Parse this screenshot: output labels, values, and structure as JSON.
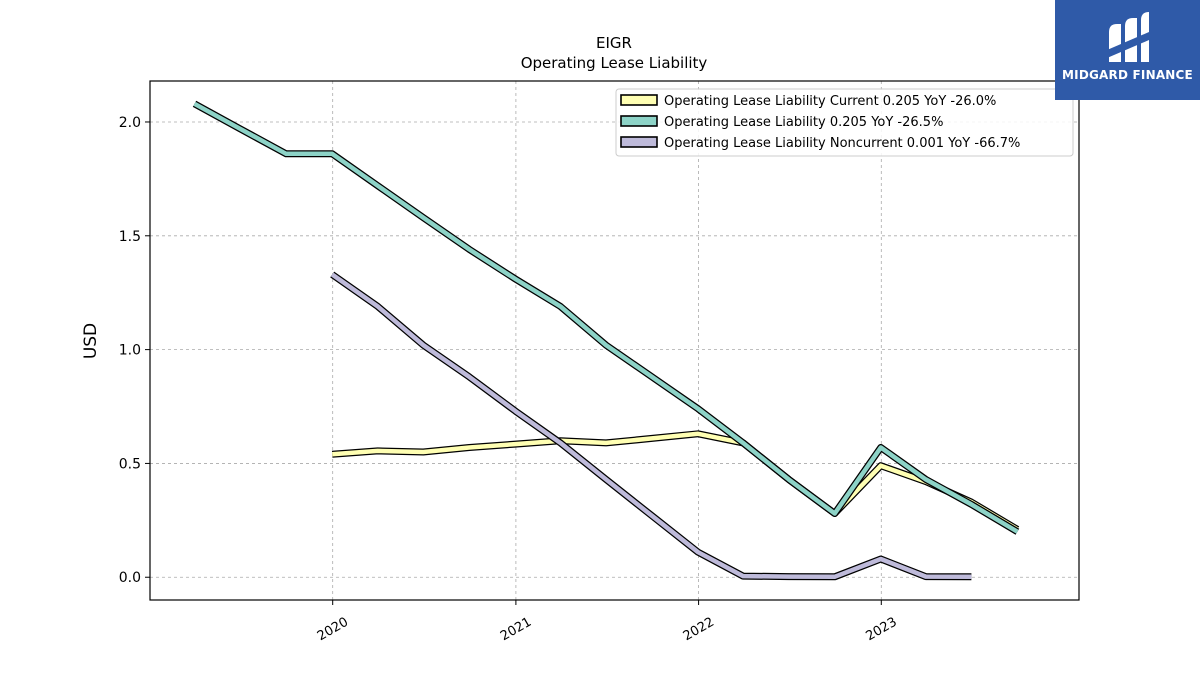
{
  "chart_data": {
    "type": "line",
    "title": "EIGR",
    "subtitle": "Operating Lease Liability",
    "xlabel": "",
    "ylabel": "USD",
    "xlim": [
      "2019-01-01",
      "2024-01-31"
    ],
    "ylim": [
      -0.1,
      2.18
    ],
    "yticks": [
      0.0,
      0.5,
      1.0,
      1.5,
      2.0
    ],
    "ytick_labels": [
      "0.0",
      "0.5",
      "1.0",
      "1.5",
      "2.0"
    ],
    "xticks": [
      "2020-01-01",
      "2021-01-01",
      "2022-01-01",
      "2023-01-01"
    ],
    "xtick_labels": [
      "2020",
      "2021",
      "2022",
      "2023"
    ],
    "grid": true,
    "legend_position": "top-right",
    "series": [
      {
        "name": "Operating Lease Liability Current",
        "legend": "Operating Lease Liability Current  0.205 YoY -26.0%",
        "color": "#ffffb3",
        "points": [
          [
            "2019-12-31",
            0.54
          ],
          [
            "2020-03-31",
            0.555
          ],
          [
            "2020-06-30",
            0.55
          ],
          [
            "2020-09-30",
            0.57
          ],
          [
            "2020-12-31",
            0.585
          ],
          [
            "2021-03-31",
            0.6
          ],
          [
            "2021-06-30",
            0.59
          ],
          [
            "2021-09-30",
            0.61
          ],
          [
            "2021-12-31",
            0.63
          ],
          [
            "2022-03-31",
            0.59
          ],
          [
            "2022-06-30",
            0.43
          ],
          [
            "2022-09-30",
            0.28
          ],
          [
            "2022-12-31",
            0.49
          ],
          [
            "2023-03-31",
            0.42
          ],
          [
            "2023-06-30",
            0.33
          ],
          [
            "2023-09-30",
            0.21
          ]
        ]
      },
      {
        "name": "Operating Lease Liability",
        "legend": "Operating Lease Liability  0.205 YoY -26.5%",
        "color": "#8dd3c7",
        "points": [
          [
            "2019-03-31",
            2.08
          ],
          [
            "2019-06-30",
            1.97
          ],
          [
            "2019-09-30",
            1.86
          ],
          [
            "2019-12-31",
            1.86
          ],
          [
            "2020-03-31",
            1.72
          ],
          [
            "2020-06-30",
            1.58
          ],
          [
            "2020-09-30",
            1.44
          ],
          [
            "2020-12-31",
            1.31
          ],
          [
            "2021-03-31",
            1.19
          ],
          [
            "2021-06-30",
            1.02
          ],
          [
            "2021-09-30",
            0.88
          ],
          [
            "2021-12-31",
            0.74
          ],
          [
            "2022-03-31",
            0.59
          ],
          [
            "2022-06-30",
            0.43
          ],
          [
            "2022-09-30",
            0.28
          ],
          [
            "2022-12-31",
            0.57
          ],
          [
            "2023-03-31",
            0.43
          ],
          [
            "2023-06-30",
            0.32
          ],
          [
            "2023-09-30",
            0.2
          ]
        ]
      },
      {
        "name": "Operating Lease Liability Noncurrent",
        "legend": "Operating Lease Liability Noncurrent  0.001 YoY -66.7%",
        "color": "#bebada",
        "points": [
          [
            "2019-12-31",
            1.33
          ],
          [
            "2020-03-31",
            1.19
          ],
          [
            "2020-06-30",
            1.02
          ],
          [
            "2020-09-30",
            0.88
          ],
          [
            "2020-12-31",
            0.73
          ],
          [
            "2021-03-31",
            0.59
          ],
          [
            "2021-06-30",
            0.43
          ],
          [
            "2021-09-30",
            0.27
          ],
          [
            "2021-12-31",
            0.11
          ],
          [
            "2022-03-31",
            0.005
          ],
          [
            "2022-06-30",
            0.003
          ],
          [
            "2022-09-30",
            0.002
          ],
          [
            "2022-12-31",
            0.08
          ],
          [
            "2023-03-31",
            0.003
          ],
          [
            "2023-06-30",
            0.002
          ]
        ]
      }
    ]
  },
  "logo": {
    "text": "MIDGARD FINANCE",
    "background": "#2f5aa8"
  }
}
